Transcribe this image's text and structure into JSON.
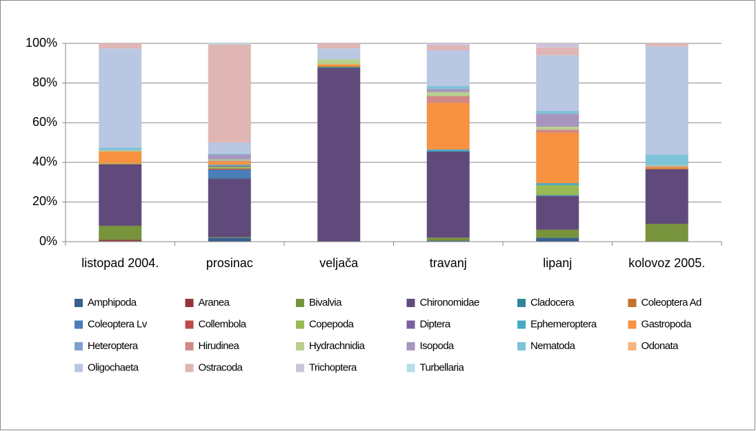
{
  "chart_data": {
    "type": "stacked_bar_percent",
    "categories": [
      "listopad 2004.",
      "prosinac",
      "veljača",
      "travanj",
      "lipanj",
      "kolovoz 2005."
    ],
    "ylim": [
      0,
      100
    ],
    "yticks": [
      {
        "value": 0,
        "label": "0%"
      },
      {
        "value": 20,
        "label": "20%"
      },
      {
        "value": 40,
        "label": "40%"
      },
      {
        "value": 60,
        "label": "60%"
      },
      {
        "value": 80,
        "label": "80%"
      },
      {
        "value": 100,
        "label": "100%"
      }
    ],
    "grid": true,
    "legend": "bottom",
    "series": [
      {
        "name": "Amphipoda",
        "color": "#3a5f8f",
        "values": [
          0.3,
          2,
          0,
          0.5,
          2,
          0
        ]
      },
      {
        "name": "Aranea",
        "color": "#943634",
        "values": [
          0.7,
          0,
          0,
          0,
          0,
          0
        ]
      },
      {
        "name": "Bivalvia",
        "color": "#77933c",
        "values": [
          7,
          0.3,
          0,
          1.5,
          4,
          9
        ]
      },
      {
        "name": "Chironomidae",
        "color": "#604a7b",
        "values": [
          31,
          29.5,
          87.5,
          43.5,
          17,
          27.5
        ]
      },
      {
        "name": "Cladocera",
        "color": "#31859c",
        "values": [
          0,
          0.5,
          0.5,
          0,
          0.5,
          0
        ]
      },
      {
        "name": "Coleoptera Ad",
        "color": "#c0722e",
        "values": [
          0.3,
          0,
          0.5,
          0,
          0,
          0.5
        ]
      },
      {
        "name": "Coleoptera Lv",
        "color": "#4a7ebb",
        "values": [
          0,
          4,
          0,
          0,
          0,
          0
        ]
      },
      {
        "name": "Collembola",
        "color": "#be4b48",
        "values": [
          0,
          0.5,
          0,
          0,
          0,
          0
        ]
      },
      {
        "name": "Copepoda",
        "color": "#98b954",
        "values": [
          0.3,
          1,
          0,
          0,
          5,
          0
        ]
      },
      {
        "name": "Diptera",
        "color": "#7d60a0",
        "values": [
          0,
          0.5,
          0,
          0,
          0,
          0
        ]
      },
      {
        "name": "Ephemeroptera",
        "color": "#46aac5",
        "values": [
          0,
          0.5,
          0,
          1,
          1,
          0
        ]
      },
      {
        "name": "Gastropoda",
        "color": "#f69240",
        "values": [
          6,
          1.5,
          1,
          23.5,
          25.5,
          0.5
        ]
      },
      {
        "name": "Heteroptera",
        "color": "#7f9fcf",
        "values": [
          0,
          0,
          0,
          0,
          0,
          0
        ]
      },
      {
        "name": "Hirudinea",
        "color": "#d08785",
        "values": [
          0,
          0.5,
          0,
          3.5,
          1.5,
          0.5
        ]
      },
      {
        "name": "Hydrachnidia",
        "color": "#b8cf8e",
        "values": [
          0.4,
          0.7,
          2.5,
          2,
          1.5,
          0.5
        ]
      },
      {
        "name": "Isopoda",
        "color": "#a595bf",
        "values": [
          0,
          2.5,
          0,
          1.5,
          6.5,
          0
        ]
      },
      {
        "name": "Nematoda",
        "color": "#7fc3d9",
        "values": [
          1.5,
          0.5,
          0,
          1.5,
          1.5,
          5.5
        ]
      },
      {
        "name": "Odonata",
        "color": "#f9b47d",
        "values": [
          0,
          0,
          0,
          0,
          0,
          0
        ]
      },
      {
        "name": "Oligochaeta",
        "color": "#b9c7e2",
        "values": [
          50,
          5.5,
          5.5,
          18,
          28,
          54.5
        ]
      },
      {
        "name": "Ostracoda",
        "color": "#e0b6b5",
        "values": [
          2.5,
          49.5,
          2.5,
          2.5,
          4,
          1.5
        ]
      },
      {
        "name": "Trichoptera",
        "color": "#cdc3dc",
        "values": [
          0,
          0,
          0,
          1,
          2,
          0
        ]
      },
      {
        "name": "Turbellaria",
        "color": "#b7dde8",
        "values": [
          0,
          0.5,
          0,
          0,
          0,
          0
        ]
      }
    ]
  }
}
